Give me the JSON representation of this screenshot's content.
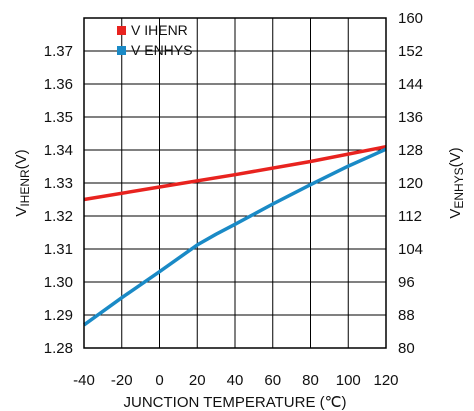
{
  "chart_data": {
    "type": "line",
    "xlabel": "JUNCTION TEMPERATURE (℃)",
    "ylabel_left_main": "V",
    "ylabel_left_sub": "IHENR",
    "ylabel_left_unit": "(V)",
    "ylabel_right_main": "V",
    "ylabel_right_sub": "ENHYS",
    "ylabel_right_unit": "(V)",
    "xlim": [
      -40,
      120
    ],
    "xticks": [
      "-40",
      "-20",
      "0",
      "20",
      "40",
      "60",
      "80",
      "100",
      "120"
    ],
    "ylim_left": [
      1.28,
      1.38
    ],
    "yticks_left": [
      "1.28",
      "1.29",
      "1.30",
      "1.31",
      "1.32",
      "1.33",
      "1.34",
      "1.35",
      "1.36",
      "1.37"
    ],
    "ylim_right": [
      80,
      160
    ],
    "yticks_right": [
      "80",
      "88",
      "96",
      "104",
      "112",
      "120",
      "128",
      "136",
      "144",
      "152",
      "160"
    ],
    "grid": true,
    "legend_position": "top-left",
    "series": [
      {
        "name": "V IHENR",
        "axis": "left",
        "color": "#e8231f",
        "x": [
          -40,
          0,
          40,
          80,
          120
        ],
        "y": [
          1.325,
          1.3288,
          1.3325,
          1.3365,
          1.341
        ]
      },
      {
        "name": "V ENHYS",
        "axis": "right",
        "color": "#1a8ac6",
        "x": [
          -40,
          -20,
          0,
          20,
          30,
          40,
          60,
          80,
          100,
          120
        ],
        "y": [
          85.6,
          92.2,
          98.5,
          105.0,
          107.6,
          110.0,
          114.9,
          119.6,
          124.1,
          128.2
        ]
      }
    ]
  }
}
